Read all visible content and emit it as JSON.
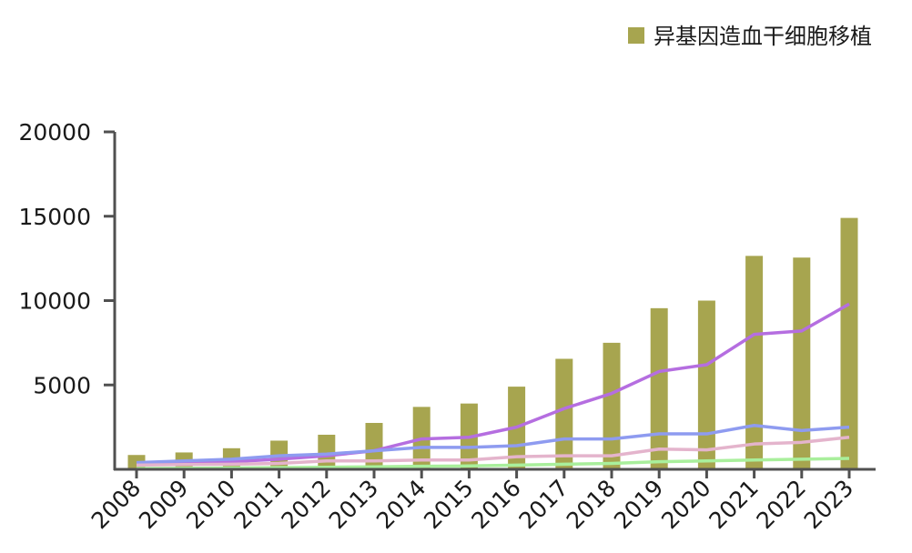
{
  "chart_data": {
    "type": "bar",
    "categories": [
      "2008",
      "2009",
      "2010",
      "2011",
      "2012",
      "2013",
      "2014",
      "2015",
      "2016",
      "2017",
      "2018",
      "2019",
      "2020",
      "2021",
      "2022",
      "2023"
    ],
    "values": [
      850,
      1000,
      1250,
      1700,
      2050,
      2750,
      3700,
      3900,
      4900,
      6550,
      7500,
      9550,
      10000,
      12650,
      12550,
      14900
    ],
    "bar_series_name": "异基因造血干细胞移植",
    "bar_color": "#a7a54f",
    "lines": [
      {
        "name": "purple",
        "color": "#b56ee0",
        "values": [
          300,
          350,
          450,
          600,
          800,
          1100,
          1800,
          1900,
          2500,
          3600,
          4500,
          5800,
          6200,
          8000,
          8200,
          9800
        ]
      },
      {
        "name": "blue",
        "color": "#8e9bf0",
        "values": [
          400,
          500,
          600,
          800,
          900,
          1100,
          1300,
          1300,
          1400,
          1800,
          1800,
          2100,
          2100,
          2600,
          2300,
          2500
        ]
      },
      {
        "name": "pink",
        "color": "#e4b4cc",
        "values": [
          250,
          280,
          300,
          350,
          500,
          500,
          550,
          550,
          750,
          800,
          800,
          1200,
          1150,
          1500,
          1600,
          1900
        ]
      },
      {
        "name": "green",
        "color": "#a9ef9c",
        "values": [
          50,
          60,
          80,
          100,
          120,
          150,
          180,
          200,
          250,
          300,
          350,
          450,
          500,
          550,
          600,
          650
        ]
      }
    ],
    "yticks": [
      5000,
      10000,
      15000,
      20000
    ],
    "ylim": [
      0,
      20000
    ],
    "legend": [
      "异基因造血干细胞移植"
    ],
    "legend_position": "top-right",
    "title": "",
    "xlabel": "",
    "ylabel": ""
  }
}
